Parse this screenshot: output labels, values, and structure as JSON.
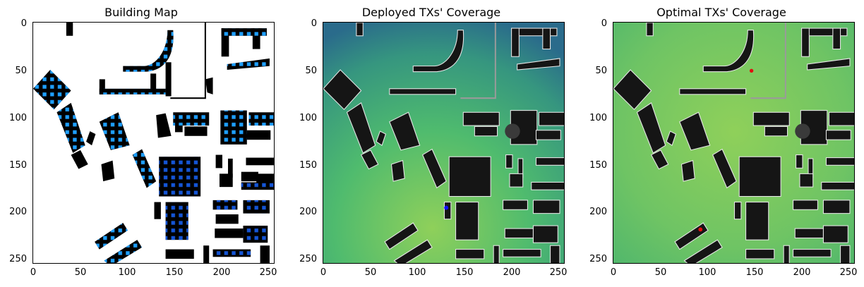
{
  "panels": [
    {
      "title": "Building Map"
    },
    {
      "title": "Deployed TXs' Coverage"
    },
    {
      "title": "Optimal TXs' Coverage"
    }
  ],
  "axes": {
    "xticks": [
      "0",
      "50",
      "100",
      "150",
      "200",
      "250"
    ],
    "yticks": [
      "0",
      "50",
      "100",
      "150",
      "200",
      "250"
    ]
  },
  "markers": {
    "deployed_tx_color": "#1010ff",
    "optimal_tx_color": "#e01010",
    "deployed_tx": {
      "x": 130,
      "y": 196
    },
    "optimal_tx": [
      {
        "x": 146,
        "y": 51
      },
      {
        "x": 92,
        "y": 219
      }
    ]
  },
  "colors": {
    "building_fill": "#000000",
    "building_dot_light": "#1e9fff",
    "building_dot_dark": "#1455d6",
    "coverage_high": "#8fd05a",
    "coverage_mid": "#3fae78",
    "coverage_low": "#2a6b8b",
    "coverage_building": "#151515"
  }
}
